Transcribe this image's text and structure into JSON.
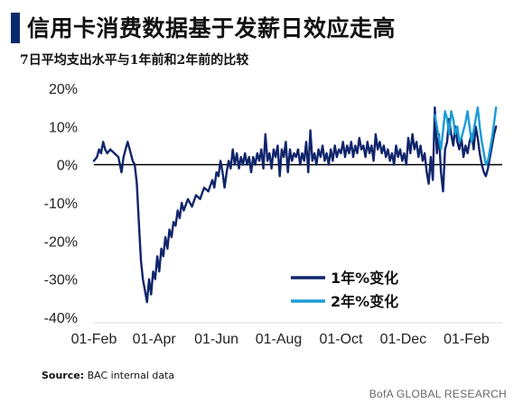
{
  "title": "信用卡消费数据基于发薪日效应走高",
  "subtitle": "7日平均支出水平与1年前和2年前的比较",
  "source_label": "Source:",
  "source_text": "BAC internal data",
  "brand": "BofA GLOBAL RESEARCH",
  "colors": {
    "series1": "#10256b",
    "series2": "#1a9cd6",
    "zero": "#000000",
    "text": "#111111"
  },
  "chart_data": {
    "type": "line",
    "title": "信用卡消费数据基于发薪日效应走高",
    "subtitle": "7日平均支出水平与1年前和2年前的比较",
    "ylim": [
      -40,
      20
    ],
    "yticks": [
      "20%",
      "10%",
      "0%",
      "-10%",
      "-20%",
      "-30%",
      "-40%"
    ],
    "ytick_values": [
      20,
      10,
      0,
      -10,
      -20,
      -30,
      -40
    ],
    "xticks": [
      "01-Feb",
      "01-Apr",
      "01-Jun",
      "01-Aug",
      "01-Oct",
      "01-Dec",
      "01-Feb"
    ],
    "xtick_index": [
      0,
      59,
      120,
      181,
      242,
      303,
      365
    ],
    "xlim": [
      0,
      400
    ],
    "legend_position": "bottom-right",
    "series": [
      {
        "name": "1年%变化",
        "color": "#10256b",
        "points": [
          [
            0,
            1
          ],
          [
            3,
            2
          ],
          [
            5,
            4
          ],
          [
            7,
            3
          ],
          [
            9,
            6
          ],
          [
            11,
            4
          ],
          [
            13,
            3
          ],
          [
            16,
            4
          ],
          [
            20,
            3
          ],
          [
            24,
            2
          ],
          [
            27,
            -2
          ],
          [
            29,
            2
          ],
          [
            31,
            4
          ],
          [
            33,
            6
          ],
          [
            35,
            4
          ],
          [
            38,
            1
          ],
          [
            40,
            0
          ],
          [
            42,
            -5
          ],
          [
            44,
            -15
          ],
          [
            46,
            -25
          ],
          [
            48,
            -30
          ],
          [
            50,
            -33
          ],
          [
            52,
            -36
          ],
          [
            54,
            -30
          ],
          [
            56,
            -34
          ],
          [
            58,
            -28
          ],
          [
            60,
            -30
          ],
          [
            62,
            -24
          ],
          [
            64,
            -28
          ],
          [
            66,
            -22
          ],
          [
            68,
            -24
          ],
          [
            70,
            -19
          ],
          [
            72,
            -22
          ],
          [
            74,
            -17
          ],
          [
            76,
            -19
          ],
          [
            78,
            -15
          ],
          [
            80,
            -16
          ],
          [
            82,
            -12
          ],
          [
            84,
            -14
          ],
          [
            86,
            -10
          ],
          [
            88,
            -12
          ],
          [
            92,
            -9
          ],
          [
            96,
            -11
          ],
          [
            100,
            -8
          ],
          [
            104,
            -9
          ],
          [
            108,
            -6
          ],
          [
            112,
            -7
          ],
          [
            116,
            -4
          ],
          [
            118,
            -6
          ],
          [
            120,
            -2
          ],
          [
            122,
            -3
          ],
          [
            124,
            1
          ],
          [
            126,
            -2
          ],
          [
            128,
            -6
          ],
          [
            130,
            -2
          ],
          [
            132,
            1
          ],
          [
            134,
            -1
          ],
          [
            136,
            4
          ],
          [
            138,
            0
          ],
          [
            140,
            3
          ],
          [
            142,
            -1
          ],
          [
            144,
            2
          ],
          [
            146,
            0
          ],
          [
            148,
            3
          ],
          [
            150,
            0
          ],
          [
            152,
            2
          ],
          [
            154,
            -2
          ],
          [
            156,
            2
          ],
          [
            158,
            0
          ],
          [
            160,
            3
          ],
          [
            162,
            1
          ],
          [
            164,
            4
          ],
          [
            166,
            -1
          ],
          [
            168,
            8
          ],
          [
            170,
            1
          ],
          [
            172,
            3
          ],
          [
            174,
            -1
          ],
          [
            176,
            4
          ],
          [
            178,
            2
          ],
          [
            180,
            5
          ],
          [
            182,
            -3
          ],
          [
            184,
            4
          ],
          [
            186,
            2
          ],
          [
            188,
            6
          ],
          [
            190,
            -2
          ],
          [
            192,
            4
          ],
          [
            194,
            1
          ],
          [
            196,
            3
          ],
          [
            198,
            2
          ],
          [
            200,
            4
          ],
          [
            202,
            0
          ],
          [
            204,
            3
          ],
          [
            206,
            1
          ],
          [
            208,
            6
          ],
          [
            210,
            -2
          ],
          [
            212,
            9
          ],
          [
            214,
            1
          ],
          [
            216,
            3
          ],
          [
            218,
            0
          ],
          [
            220,
            4
          ],
          [
            222,
            2
          ],
          [
            224,
            5
          ],
          [
            226,
            1
          ],
          [
            228,
            3
          ],
          [
            230,
            0
          ],
          [
            232,
            4
          ],
          [
            234,
            1
          ],
          [
            236,
            5
          ],
          [
            238,
            2
          ],
          [
            240,
            4
          ],
          [
            242,
            3
          ],
          [
            244,
            6
          ],
          [
            246,
            2
          ],
          [
            248,
            5
          ],
          [
            250,
            3
          ],
          [
            252,
            6
          ],
          [
            254,
            2
          ],
          [
            256,
            5
          ],
          [
            258,
            3
          ],
          [
            260,
            7
          ],
          [
            262,
            4
          ],
          [
            264,
            5
          ],
          [
            266,
            2
          ],
          [
            268,
            6
          ],
          [
            270,
            3
          ],
          [
            272,
            5
          ],
          [
            274,
            1
          ],
          [
            276,
            8
          ],
          [
            278,
            4
          ],
          [
            280,
            6
          ],
          [
            282,
            3
          ],
          [
            284,
            5
          ],
          [
            286,
            2
          ],
          [
            288,
            4
          ],
          [
            290,
            1
          ],
          [
            292,
            3
          ],
          [
            294,
            0
          ],
          [
            296,
            5
          ],
          [
            298,
            2
          ],
          [
            300,
            4
          ],
          [
            302,
            1
          ],
          [
            304,
            3
          ],
          [
            306,
            0
          ],
          [
            308,
            7
          ],
          [
            310,
            3
          ],
          [
            312,
            8
          ],
          [
            314,
            4
          ],
          [
            316,
            6
          ],
          [
            318,
            2
          ],
          [
            320,
            5
          ],
          [
            322,
            1
          ],
          [
            324,
            3
          ],
          [
            326,
            -2
          ],
          [
            328,
            -5
          ],
          [
            330,
            2
          ],
          [
            332,
            -4
          ],
          [
            334,
            15
          ],
          [
            336,
            3
          ],
          [
            338,
            8
          ],
          [
            340,
            -2
          ],
          [
            342,
            -7
          ],
          [
            344,
            4
          ],
          [
            346,
            6
          ],
          [
            348,
            12
          ],
          [
            350,
            8
          ],
          [
            352,
            5
          ],
          [
            354,
            10
          ],
          [
            356,
            6
          ],
          [
            358,
            4
          ],
          [
            360,
            7
          ],
          [
            362,
            2
          ],
          [
            364,
            5
          ],
          [
            366,
            3
          ],
          [
            368,
            6
          ],
          [
            370,
            8
          ],
          [
            372,
            4
          ],
          [
            374,
            10
          ],
          [
            376,
            7
          ],
          [
            378,
            3
          ],
          [
            380,
            0
          ],
          [
            382,
            -2
          ],
          [
            384,
            -3
          ],
          [
            386,
            -1
          ],
          [
            388,
            2
          ],
          [
            390,
            5
          ],
          [
            392,
            8
          ],
          [
            394,
            10
          ]
        ]
      },
      {
        "name": "2年%变化",
        "color": "#1a9cd6",
        "points": [
          [
            334,
            13
          ],
          [
            336,
            10
          ],
          [
            338,
            7
          ],
          [
            340,
            4
          ],
          [
            342,
            9
          ],
          [
            344,
            14
          ],
          [
            346,
            12
          ],
          [
            348,
            8
          ],
          [
            350,
            14
          ],
          [
            352,
            12
          ],
          [
            354,
            8
          ],
          [
            356,
            10
          ],
          [
            358,
            6
          ],
          [
            360,
            7
          ],
          [
            362,
            9
          ],
          [
            364,
            11
          ],
          [
            366,
            14
          ],
          [
            368,
            10
          ],
          [
            370,
            6
          ],
          [
            372,
            9
          ],
          [
            374,
            12
          ],
          [
            376,
            15
          ],
          [
            378,
            10
          ],
          [
            380,
            6
          ],
          [
            382,
            3
          ],
          [
            384,
            0
          ],
          [
            386,
            1
          ],
          [
            388,
            4
          ],
          [
            390,
            7
          ],
          [
            392,
            11
          ],
          [
            394,
            15
          ]
        ]
      }
    ]
  }
}
